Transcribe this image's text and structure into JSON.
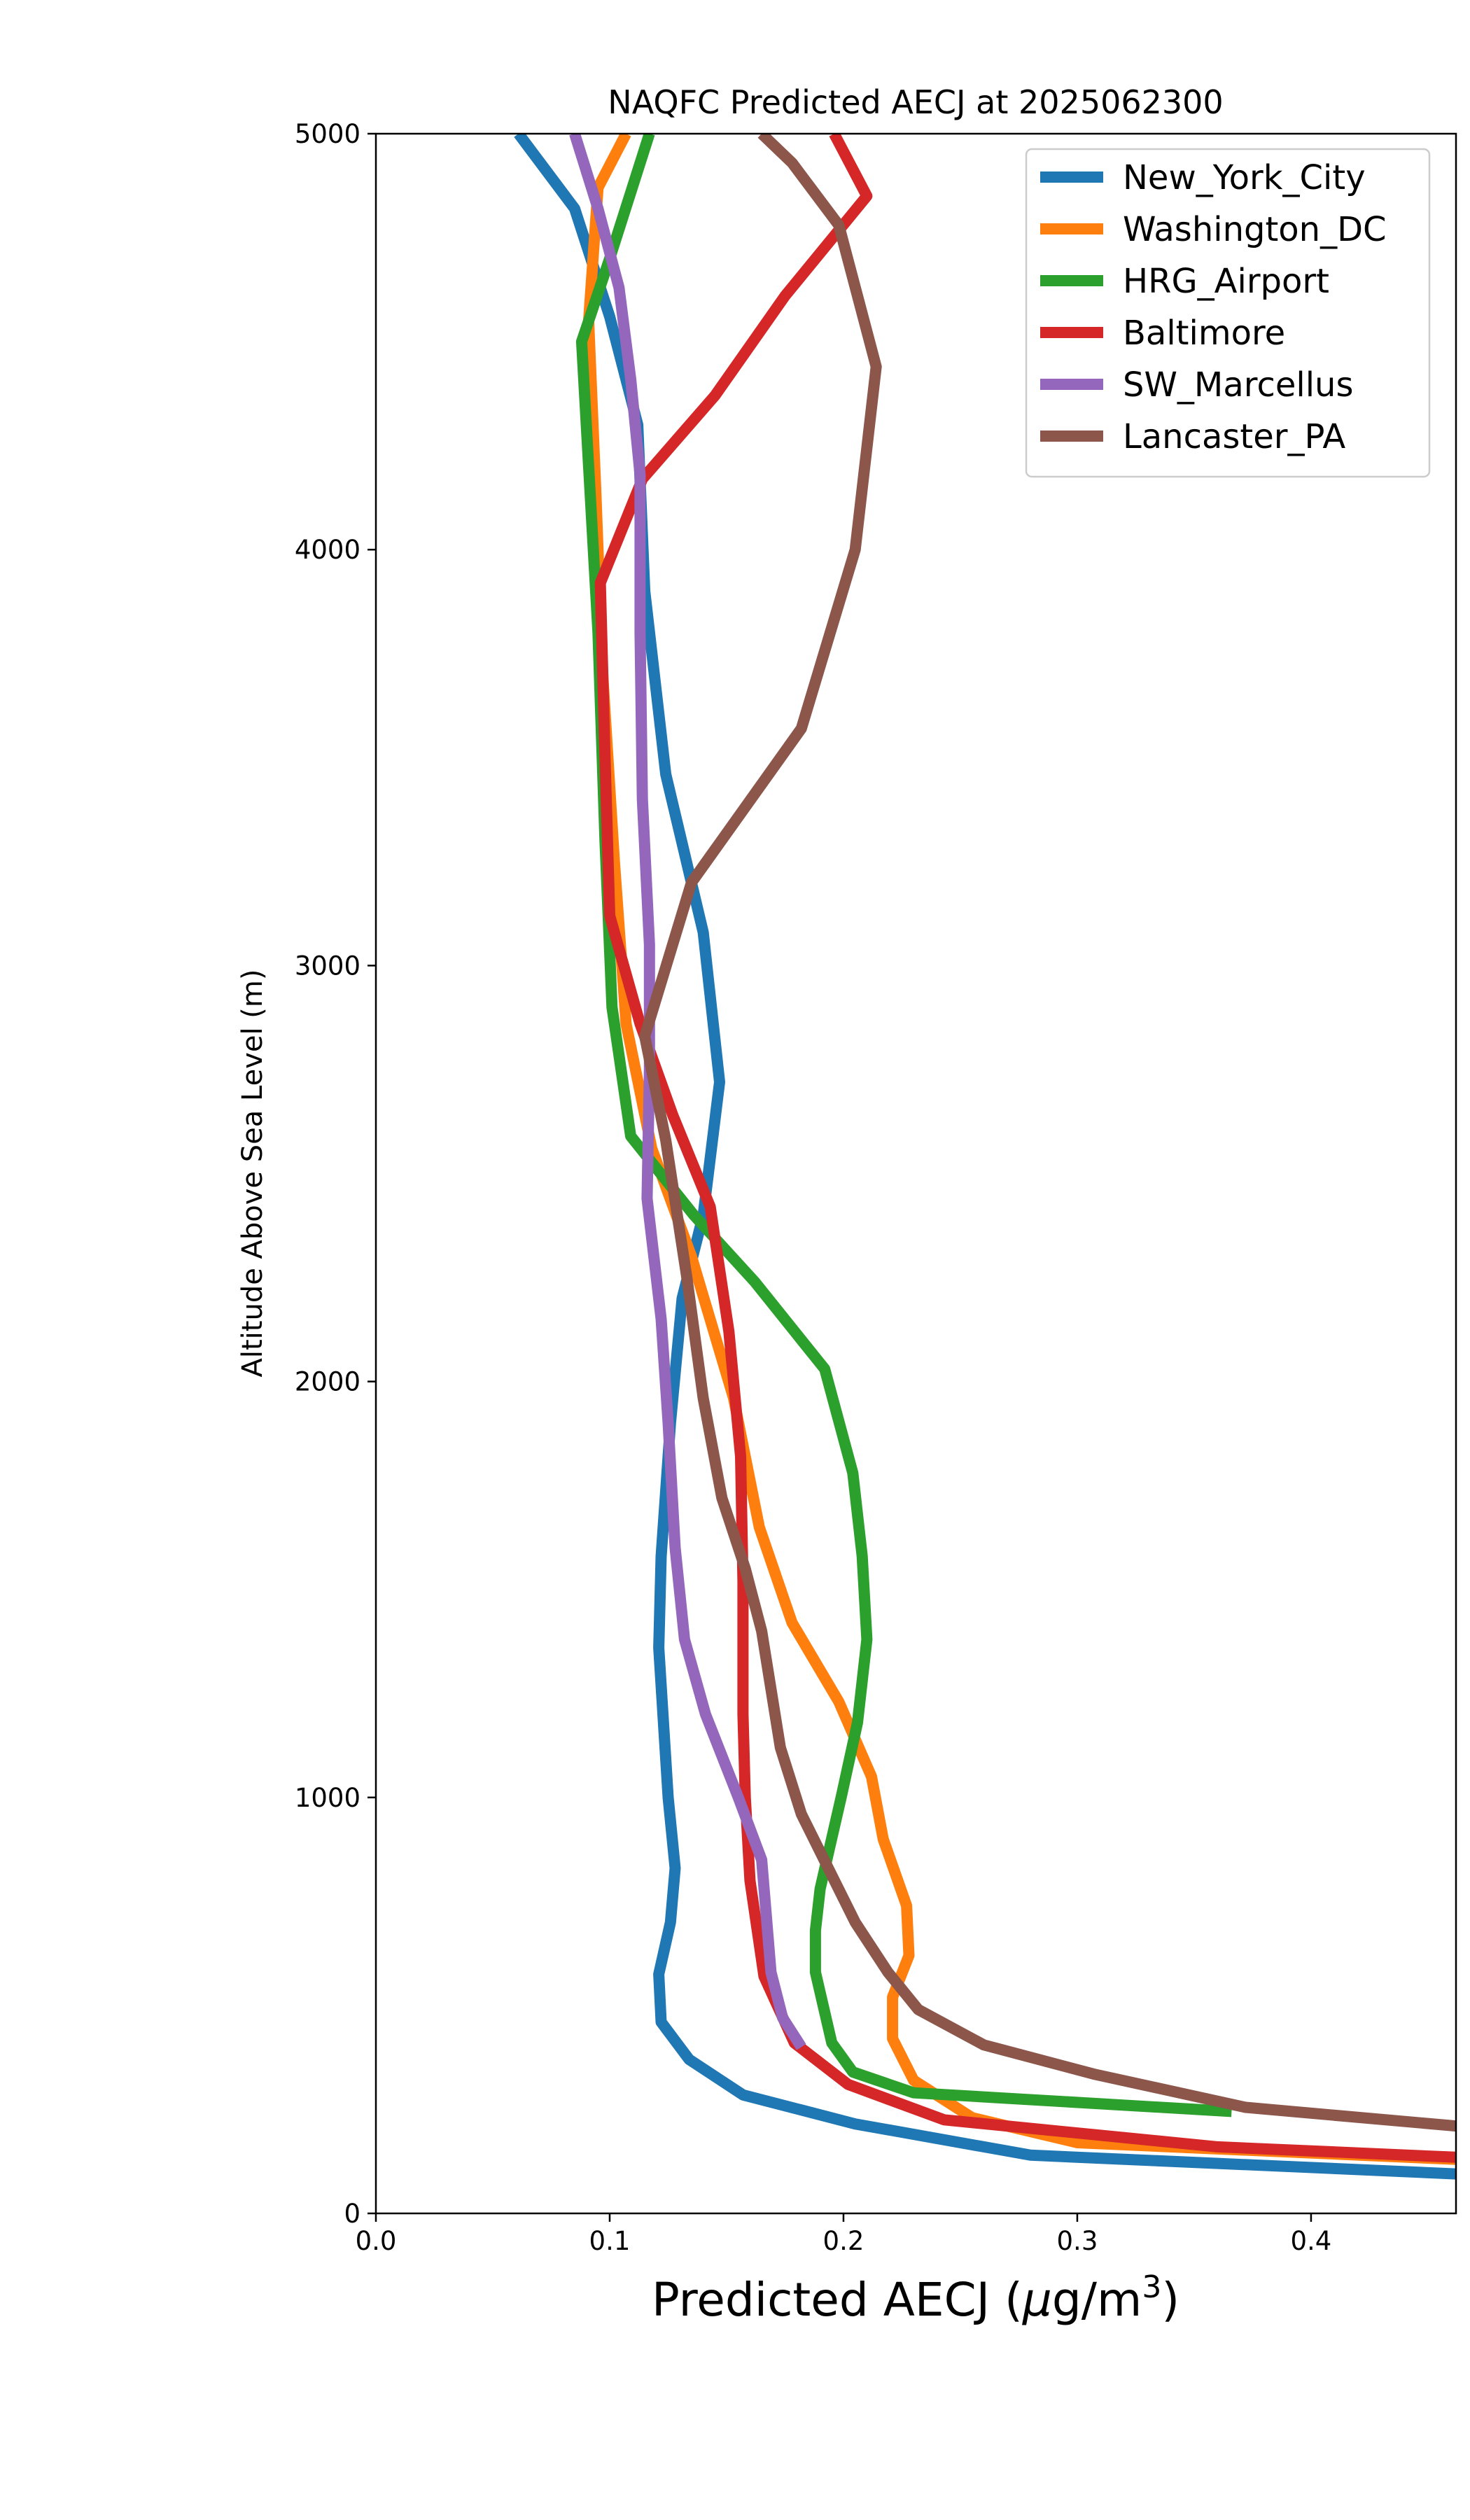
{
  "chart_data": {
    "type": "line",
    "title": "NAQFC Predicted AECJ at 2025062300",
    "xlabel_main": "Predicted AECJ (",
    "xlabel_mu": "μ",
    "xlabel_unit": "g/m",
    "xlabel_sup": "3",
    "xlabel_close": ")",
    "ylabel": "Altitude Above Sea Level (m)",
    "xlim": [
      0,
      0.462
    ],
    "ylim": [
      0,
      5000
    ],
    "xticks": [
      {
        "value": 0.0,
        "label": "0.0"
      },
      {
        "value": 0.1,
        "label": "0.1"
      },
      {
        "value": 0.2,
        "label": "0.2"
      },
      {
        "value": 0.3,
        "label": "0.3"
      },
      {
        "value": 0.4,
        "label": "0.4"
      }
    ],
    "yticks": [
      {
        "value": 0,
        "label": "0"
      },
      {
        "value": 1000,
        "label": "1000"
      },
      {
        "value": 2000,
        "label": "2000"
      },
      {
        "value": 3000,
        "label": "3000"
      },
      {
        "value": 4000,
        "label": "4000"
      },
      {
        "value": 5000,
        "label": "5000"
      }
    ],
    "grid": false,
    "legend_position": "top-right",
    "series": [
      {
        "name": "New_York_City",
        "color": "#1f77b4",
        "points": [
          [
            0.462,
            95
          ],
          [
            0.28,
            140
          ],
          [
            0.205,
            215
          ],
          [
            0.157,
            285
          ],
          [
            0.134,
            370
          ],
          [
            0.122,
            460
          ],
          [
            0.121,
            575
          ],
          [
            0.126,
            700
          ],
          [
            0.128,
            830
          ],
          [
            0.125,
            1000
          ],
          [
            0.121,
            1360
          ],
          [
            0.122,
            1580
          ],
          [
            0.126,
            1900
          ],
          [
            0.131,
            2200
          ],
          [
            0.14,
            2400
          ],
          [
            0.147,
            2720
          ],
          [
            0.14,
            3080
          ],
          [
            0.124,
            3460
          ],
          [
            0.115,
            3900
          ],
          [
            0.112,
            4300
          ],
          [
            0.1,
            4560
          ],
          [
            0.085,
            4820
          ],
          [
            0.061,
            5000
          ]
        ]
      },
      {
        "name": "Washington_DC",
        "color": "#ff7f0e",
        "points": [
          [
            0.462,
            130
          ],
          [
            0.3,
            170
          ],
          [
            0.255,
            230
          ],
          [
            0.23,
            320
          ],
          [
            0.221,
            420
          ],
          [
            0.221,
            520
          ],
          [
            0.228,
            620
          ],
          [
            0.227,
            740
          ],
          [
            0.217,
            900
          ],
          [
            0.212,
            1050
          ],
          [
            0.198,
            1230
          ],
          [
            0.178,
            1420
          ],
          [
            0.164,
            1650
          ],
          [
            0.153,
            1960
          ],
          [
            0.135,
            2300
          ],
          [
            0.118,
            2560
          ],
          [
            0.107,
            2860
          ],
          [
            0.102,
            3250
          ],
          [
            0.097,
            3700
          ],
          [
            0.094,
            4150
          ],
          [
            0.091,
            4550
          ],
          [
            0.095,
            4870
          ],
          [
            0.107,
            5000
          ]
        ]
      },
      {
        "name": "HRG_Airport",
        "color": "#2ca02c",
        "points": [
          [
            0.366,
            245
          ],
          [
            0.23,
            290
          ],
          [
            0.204,
            340
          ],
          [
            0.195,
            410
          ],
          [
            0.188,
            580
          ],
          [
            0.188,
            680
          ],
          [
            0.19,
            780
          ],
          [
            0.199,
            1000
          ],
          [
            0.206,
            1180
          ],
          [
            0.21,
            1380
          ],
          [
            0.208,
            1580
          ],
          [
            0.204,
            1780
          ],
          [
            0.192,
            2030
          ],
          [
            0.162,
            2240
          ],
          [
            0.136,
            2400
          ],
          [
            0.109,
            2590
          ],
          [
            0.101,
            2900
          ],
          [
            0.098,
            3300
          ],
          [
            0.095,
            3800
          ],
          [
            0.091,
            4200
          ],
          [
            0.088,
            4500
          ],
          [
            0.1,
            4700
          ],
          [
            0.117,
            5000
          ]
        ]
      },
      {
        "name": "Baltimore",
        "color": "#d62728",
        "points": [
          [
            0.462,
            135
          ],
          [
            0.36,
            160
          ],
          [
            0.243,
            225
          ],
          [
            0.202,
            310
          ],
          [
            0.179,
            410
          ],
          [
            0.166,
            570
          ],
          [
            0.16,
            800
          ],
          [
            0.158,
            1000
          ],
          [
            0.157,
            1200
          ],
          [
            0.157,
            1520
          ],
          [
            0.156,
            1820
          ],
          [
            0.151,
            2120
          ],
          [
            0.143,
            2420
          ],
          [
            0.127,
            2640
          ],
          [
            0.113,
            2860
          ],
          [
            0.1,
            3120
          ],
          [
            0.098,
            3500
          ],
          [
            0.096,
            3920
          ],
          [
            0.114,
            4170
          ],
          [
            0.145,
            4370
          ],
          [
            0.175,
            4610
          ],
          [
            0.21,
            4850
          ],
          [
            0.196,
            5000
          ]
        ]
      },
      {
        "name": "SW_Marcellus",
        "color": "#9467bd",
        "points": [
          [
            0.182,
            400
          ],
          [
            0.174,
            470
          ],
          [
            0.169,
            580
          ],
          [
            0.165,
            850
          ],
          [
            0.155,
            1000
          ],
          [
            0.141,
            1200
          ],
          [
            0.132,
            1380
          ],
          [
            0.128,
            1600
          ],
          [
            0.125,
            1900
          ],
          [
            0.122,
            2150
          ],
          [
            0.116,
            2440
          ],
          [
            0.117,
            2750
          ],
          [
            0.117,
            3050
          ],
          [
            0.114,
            3400
          ],
          [
            0.113,
            3800
          ],
          [
            0.113,
            4180
          ],
          [
            0.109,
            4410
          ],
          [
            0.104,
            4630
          ],
          [
            0.095,
            4820
          ],
          [
            0.085,
            5000
          ]
        ]
      },
      {
        "name": "Lancaster_PA",
        "color": "#8c564b",
        "points": [
          [
            0.462,
            210
          ],
          [
            0.372,
            255
          ],
          [
            0.307,
            335
          ],
          [
            0.26,
            405
          ],
          [
            0.232,
            490
          ],
          [
            0.219,
            580
          ],
          [
            0.205,
            700
          ],
          [
            0.182,
            960
          ],
          [
            0.173,
            1120
          ],
          [
            0.165,
            1400
          ],
          [
            0.158,
            1550
          ],
          [
            0.148,
            1720
          ],
          [
            0.14,
            1960
          ],
          [
            0.133,
            2250
          ],
          [
            0.124,
            2580
          ],
          [
            0.115,
            2830
          ],
          [
            0.135,
            3200
          ],
          [
            0.182,
            3570
          ],
          [
            0.205,
            4000
          ],
          [
            0.214,
            4440
          ],
          [
            0.198,
            4780
          ],
          [
            0.178,
            4930
          ],
          [
            0.165,
            5000
          ]
        ]
      }
    ]
  }
}
